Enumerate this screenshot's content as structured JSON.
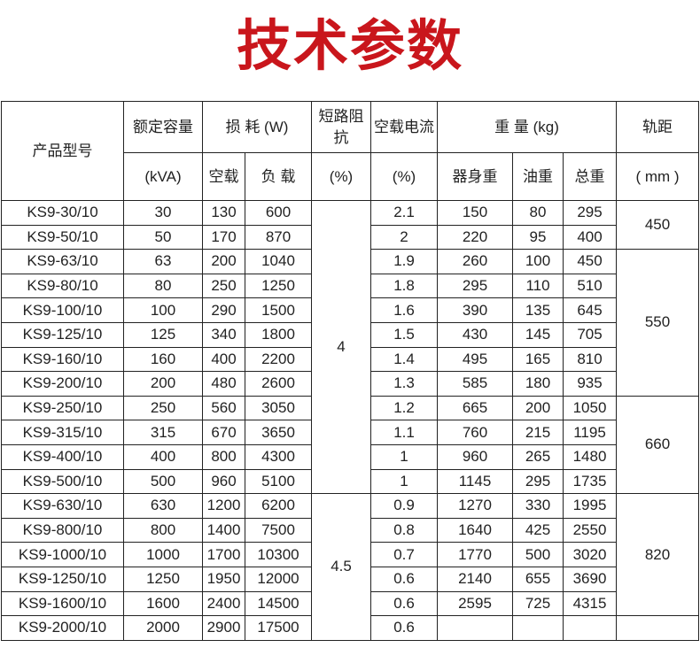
{
  "title": "技术参数",
  "colors": {
    "title": "#c9161c",
    "border": "#222222"
  },
  "header": {
    "model": "产品型号",
    "capacity": "额定容量",
    "capacity_unit": "(kVA)",
    "loss": "损 耗 (W)",
    "loss_noload": "空载",
    "loss_load": "负 载",
    "impedance": "短路阻抗",
    "impedance_unit": "(%)",
    "noload_current": "空载电流",
    "noload_current_unit": "(%)",
    "weight": "重 量 (kg)",
    "weight_body": "器身重",
    "weight_oil": "油重",
    "weight_total": "总重",
    "gauge": "轨距",
    "gauge_unit": "( mm )"
  },
  "rows": [
    {
      "model": "KS9-30/10",
      "capacity": "30",
      "noload_loss": "130",
      "load_loss": "600",
      "current": "2.1",
      "body": "150",
      "oil": "80",
      "total": "295"
    },
    {
      "model": "KS9-50/10",
      "capacity": "50",
      "noload_loss": "170",
      "load_loss": "870",
      "current": "2",
      "body": "220",
      "oil": "95",
      "total": "400"
    },
    {
      "model": "KS9-63/10",
      "capacity": "63",
      "noload_loss": "200",
      "load_loss": "1040",
      "current": "1.9",
      "body": "260",
      "oil": "100",
      "total": "450"
    },
    {
      "model": "KS9-80/10",
      "capacity": "80",
      "noload_loss": "250",
      "load_loss": "1250",
      "current": "1.8",
      "body": "295",
      "oil": "110",
      "total": "510"
    },
    {
      "model": "KS9-100/10",
      "capacity": "100",
      "noload_loss": "290",
      "load_loss": "1500",
      "current": "1.6",
      "body": "390",
      "oil": "135",
      "total": "645"
    },
    {
      "model": "KS9-125/10",
      "capacity": "125",
      "noload_loss": "340",
      "load_loss": "1800",
      "current": "1.5",
      "body": "430",
      "oil": "145",
      "total": "705"
    },
    {
      "model": "KS9-160/10",
      "capacity": "160",
      "noload_loss": "400",
      "load_loss": "2200",
      "current": "1.4",
      "body": "495",
      "oil": "165",
      "total": "810"
    },
    {
      "model": "KS9-200/10",
      "capacity": "200",
      "noload_loss": "480",
      "load_loss": "2600",
      "current": "1.3",
      "body": "585",
      "oil": "180",
      "total": "935"
    },
    {
      "model": "KS9-250/10",
      "capacity": "250",
      "noload_loss": "560",
      "load_loss": "3050",
      "current": "1.2",
      "body": "665",
      "oil": "200",
      "total": "1050"
    },
    {
      "model": "KS9-315/10",
      "capacity": "315",
      "noload_loss": "670",
      "load_loss": "3650",
      "current": "1.1",
      "body": "760",
      "oil": "215",
      "total": "1195"
    },
    {
      "model": "KS9-400/10",
      "capacity": "400",
      "noload_loss": "800",
      "load_loss": "4300",
      "current": "1",
      "body": "960",
      "oil": "265",
      "total": "1480"
    },
    {
      "model": "KS9-500/10",
      "capacity": "500",
      "noload_loss": "960",
      "load_loss": "5100",
      "current": "1",
      "body": "1145",
      "oil": "295",
      "total": "1735"
    },
    {
      "model": "KS9-630/10",
      "capacity": "630",
      "noload_loss": "1200",
      "load_loss": "6200",
      "current": "0.9",
      "body": "1270",
      "oil": "330",
      "total": "1995"
    },
    {
      "model": "KS9-800/10",
      "capacity": "800",
      "noload_loss": "1400",
      "load_loss": "7500",
      "current": "0.8",
      "body": "1640",
      "oil": "425",
      "total": "2550"
    },
    {
      "model": "KS9-1000/10",
      "capacity": "1000",
      "noload_loss": "1700",
      "load_loss": "10300",
      "current": "0.7",
      "body": "1770",
      "oil": "500",
      "total": "3020"
    },
    {
      "model": "KS9-1250/10",
      "capacity": "1250",
      "noload_loss": "1950",
      "load_loss": "12000",
      "current": "0.6",
      "body": "2140",
      "oil": "655",
      "total": "3690"
    },
    {
      "model": "KS9-1600/10",
      "capacity": "1600",
      "noload_loss": "2400",
      "load_loss": "14500",
      "current": "0.6",
      "body": "2595",
      "oil": "725",
      "total": "4315"
    },
    {
      "model": "KS9-2000/10",
      "capacity": "2000",
      "noload_loss": "2900",
      "load_loss": "17500",
      "current": "0.6",
      "body": "",
      "oil": "",
      "total": ""
    }
  ],
  "impedance_groups": [
    {
      "value": "4",
      "rows": 12
    },
    {
      "value": "4.5",
      "rows": 6
    }
  ],
  "gauge_groups": [
    {
      "value": "450",
      "rows": 2
    },
    {
      "value": "550",
      "rows": 6
    },
    {
      "value": "660",
      "rows": 4
    },
    {
      "value": "820",
      "rows": 5
    },
    {
      "value": "",
      "rows": 1
    }
  ]
}
